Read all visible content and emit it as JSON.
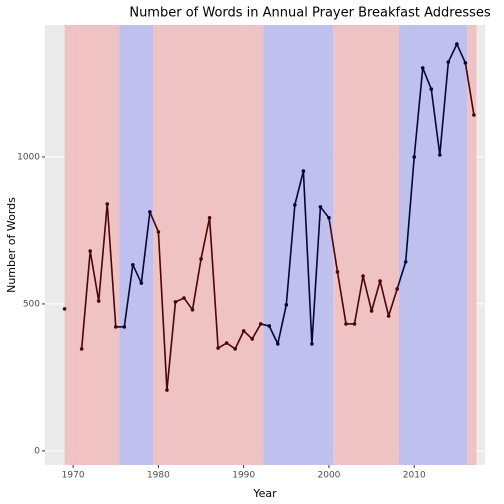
{
  "chart_data": {
    "type": "line",
    "title": "Number of Words in Annual Prayer Breakfast Addresses",
    "x_label": "Year",
    "y_label": "Number of Words",
    "x": [
      1969,
      1970,
      1971,
      1972,
      1973,
      1974,
      1975,
      1976,
      1977,
      1978,
      1979,
      1980,
      1981,
      1982,
      1983,
      1984,
      1985,
      1986,
      1987,
      1988,
      1989,
      1990,
      1991,
      1992,
      1993,
      1994,
      1995,
      1996,
      1997,
      1998,
      1999,
      2000,
      2001,
      2002,
      2003,
      2004,
      2005,
      2006,
      2007,
      2008,
      2009,
      2010,
      2011,
      2012,
      2013,
      2014,
      2015,
      2016,
      2017
    ],
    "series": [
      {
        "name": "Words",
        "values": [
          483,
          null,
          347,
          680,
          510,
          840,
          422,
          422,
          633,
          571,
          813,
          745,
          207,
          507,
          520,
          480,
          653,
          793,
          350,
          367,
          347,
          408,
          381,
          432,
          425,
          364,
          497,
          837,
          952,
          364,
          830,
          793,
          609,
          432,
          432,
          595,
          476,
          578,
          459,
          551,
          643,
          1000,
          1303,
          1231,
          1007,
          1323,
          1384,
          1320,
          1143
        ]
      }
    ],
    "regions": [
      {
        "start": 1969,
        "end": 1975.4,
        "color": "#efbfbf",
        "line_color": "#4a0505"
      },
      {
        "start": 1975.4,
        "end": 1979.4,
        "color": "#babbee",
        "line_color": "#05053a"
      },
      {
        "start": 1979.4,
        "end": 1992.3,
        "color": "#efbfbf",
        "line_color": "#4a0505"
      },
      {
        "start": 1992.3,
        "end": 2000.5,
        "color": "#babbee",
        "line_color": "#05053a"
      },
      {
        "start": 2000.5,
        "end": 2008.2,
        "color": "#efbfbf",
        "line_color": "#4a0505"
      },
      {
        "start": 2008.2,
        "end": 2016.2,
        "color": "#babbee",
        "line_color": "#05053a"
      },
      {
        "start": 2016.2,
        "end": 2017.3,
        "color": "#efbfbf",
        "line_color": "#4a0505"
      }
    ],
    "xlim": [
      1966.7,
      2018.3
    ],
    "ylim": [
      -48,
      1449
    ],
    "xticks": [
      1970,
      1980,
      1990,
      2000,
      2010
    ],
    "yticks": [
      0,
      500,
      1000
    ],
    "grid": true
  }
}
